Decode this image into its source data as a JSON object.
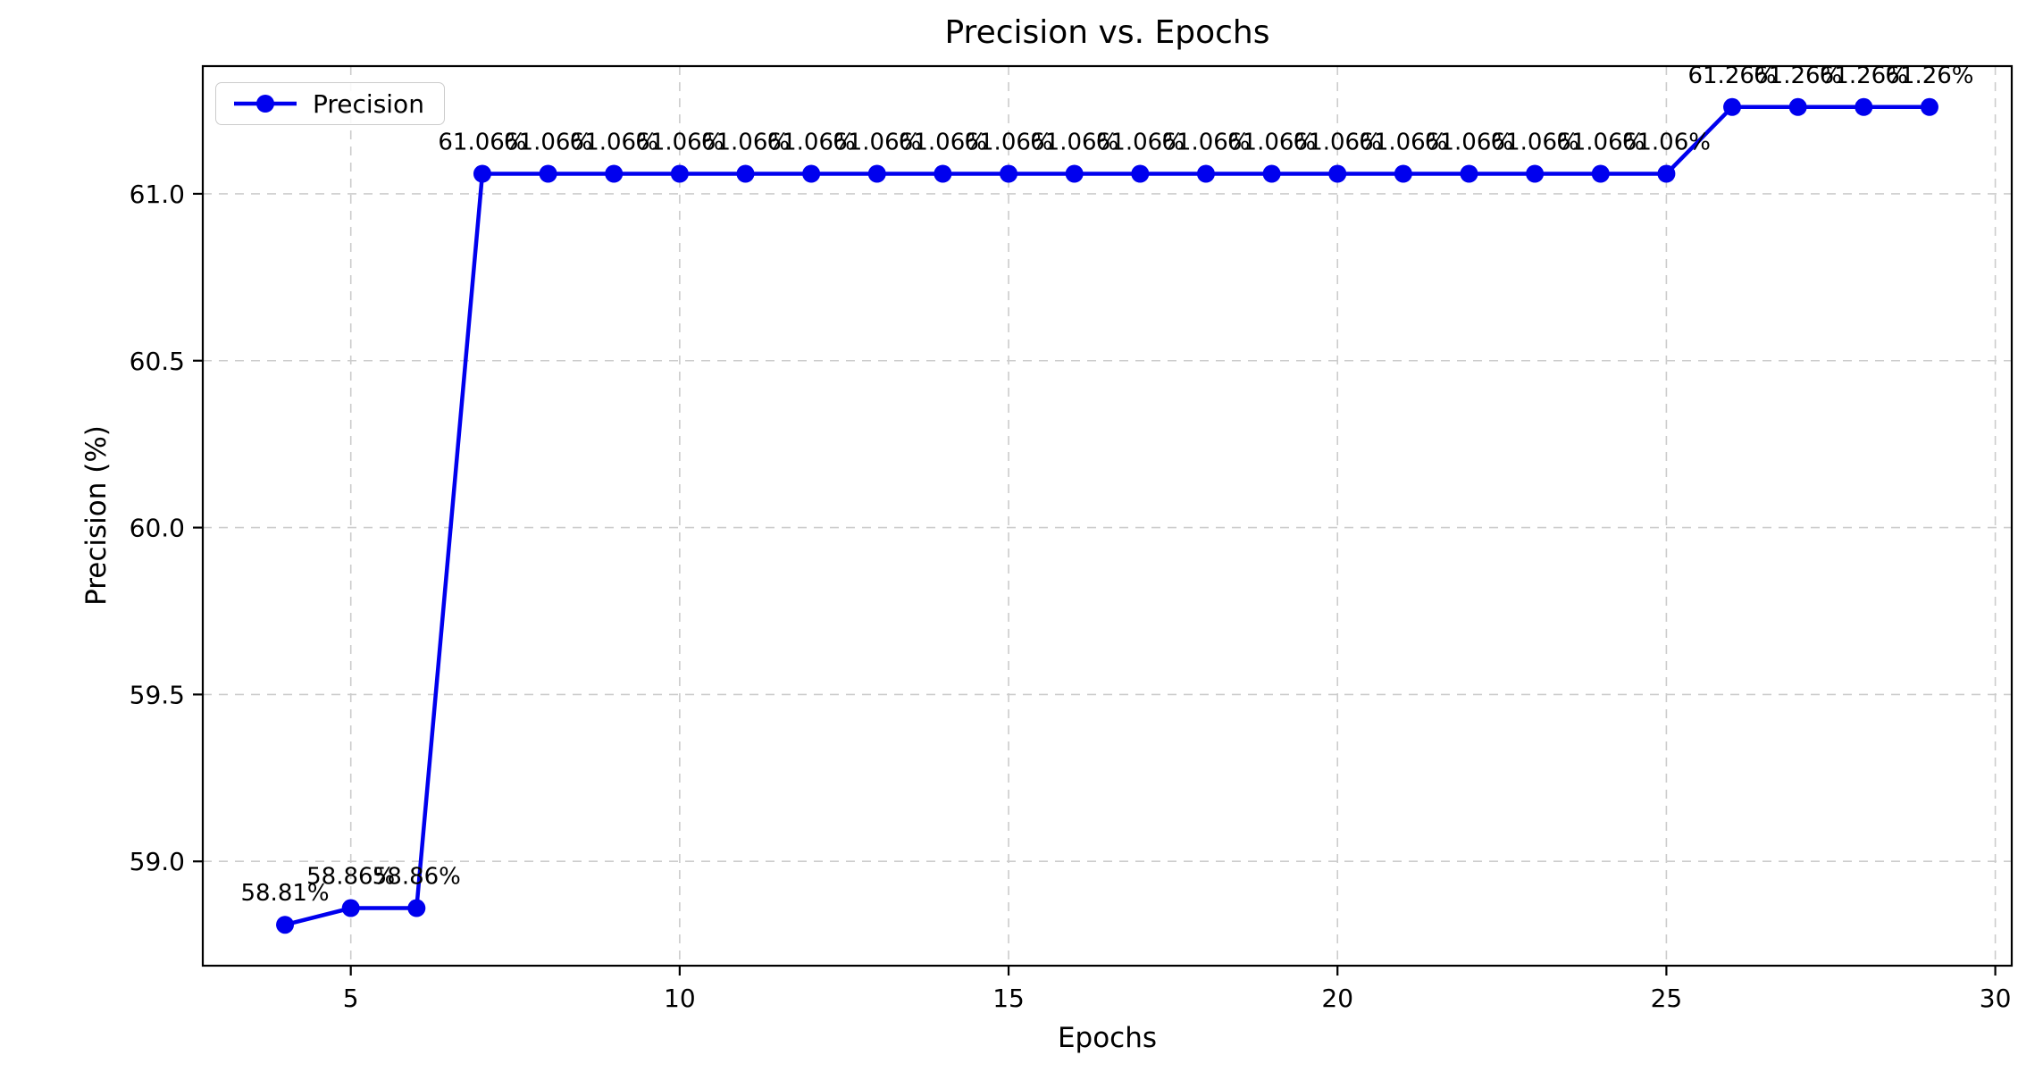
{
  "title": "Precision vs. Epochs",
  "legend": {
    "entries": [
      "Precision"
    ],
    "position": "upper left"
  },
  "chart_data": {
    "type": "line",
    "title": "Precision vs. Epochs",
    "xlabel": "Epochs",
    "ylabel": "Precision (%)",
    "grid": true,
    "grid_style": "dashed",
    "legend_position": "upper left",
    "series": [
      {
        "name": "Precision",
        "color": "#0000ee",
        "marker": "circle",
        "x": [
          4,
          5,
          6,
          7,
          8,
          9,
          10,
          11,
          12,
          13,
          14,
          15,
          16,
          17,
          18,
          19,
          20,
          21,
          22,
          23,
          24,
          25,
          26,
          27,
          28,
          29
        ],
        "y": [
          58.81,
          58.86,
          58.86,
          61.06,
          61.06,
          61.06,
          61.06,
          61.06,
          61.06,
          61.06,
          61.06,
          61.06,
          61.06,
          61.06,
          61.06,
          61.06,
          61.06,
          61.06,
          61.06,
          61.06,
          61.06,
          61.06,
          61.26,
          61.26,
          61.26,
          61.26
        ],
        "point_labels": [
          "58.81%",
          "58.86%",
          "58.86%",
          "61.06%",
          "61.06%",
          "61.06%",
          "61.06%",
          "61.06%",
          "61.06%",
          "61.06%",
          "61.06%",
          "61.06%",
          "61.06%",
          "61.06%",
          "61.06%",
          "61.06%",
          "61.06%",
          "61.06%",
          "61.06%",
          "61.06%",
          "61.06%",
          "61.06%",
          "61.26%",
          "61.26%",
          "61.26%",
          "61.26%"
        ]
      }
    ],
    "xlim": [
      2.75,
      30.25
    ],
    "ylim": [
      58.6875,
      61.3825
    ],
    "xticks": [
      5,
      10,
      15,
      20,
      25,
      30
    ],
    "xtick_labels": [
      "5",
      "10",
      "15",
      "20",
      "25",
      "30"
    ],
    "yticks": [
      59.0,
      59.5,
      60.0,
      60.5,
      61.0
    ],
    "ytick_labels": [
      "59.0",
      "59.5",
      "60.0",
      "60.5",
      "61.0"
    ]
  },
  "colors": {
    "line": "#0000ee",
    "grid": "#cccccc",
    "spine": "#000000",
    "text": "#000000",
    "legend_border": "#cccccc",
    "background": "#ffffff"
  }
}
